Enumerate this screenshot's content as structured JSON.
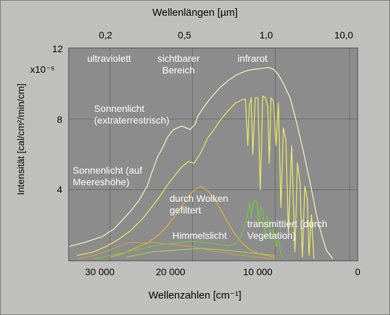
{
  "chart_data": {
    "type": "line",
    "top_axis_title": "Wellenlängen [µm]",
    "top_ticks": [
      "0,2",
      "0,5",
      "1,0",
      "10,0"
    ],
    "xlabel": "Wellenzahlen [cm⁻¹]",
    "x_ticks": [
      "30 000",
      "20 000",
      "10 000",
      "0"
    ],
    "xlim": [
      35000,
      0
    ],
    "ylabel": "Intensität [cal/cm²/min/cm]",
    "y_ticks": [
      "12",
      "8",
      "4"
    ],
    "y_multiplier": "x10⁻⁵",
    "ylim": [
      0,
      12
    ],
    "grid": true,
    "regions": [
      {
        "label": "ultraviolett"
      },
      {
        "label": "sichtbarer Bereich"
      },
      {
        "label": "infrarot"
      }
    ],
    "annotations": [
      "Sonnenlicht (extraterrestrisch)",
      "Sonnenlicht (auf Meereshöhe)",
      "durch Wolken gefiltert",
      "Himmelslicht",
      "transmittiert (durch Vegetation)"
    ],
    "series": [
      {
        "color": "#fafac8",
        "x": [
          35000,
          33000,
          31000,
          29500,
          28500,
          27500,
          26500,
          25500,
          25000,
          24200,
          23700,
          23000,
          22300,
          21300,
          20300,
          19700,
          19300,
          18600,
          17600,
          16600,
          15600,
          14600,
          13600,
          12600,
          11600,
          10800,
          10200,
          9600,
          9000,
          8200,
          7400,
          6600,
          5800,
          5000,
          4400,
          3800,
          3000
        ],
        "y": [
          0.8,
          1.05,
          1.35,
          1.8,
          2.3,
          2.8,
          3.4,
          4.2,
          4.9,
          5.9,
          6.3,
          7.0,
          7.4,
          7.6,
          7.4,
          7.7,
          8.2,
          8.7,
          9.3,
          9.8,
          10.2,
          10.5,
          10.7,
          10.8,
          10.85,
          10.9,
          10.8,
          10.5,
          10.0,
          9.2,
          7.8,
          6.2,
          4.5,
          2.6,
          1.5,
          0.6,
          0.1
        ]
      },
      {
        "color": "#f0f064",
        "x": [
          34000,
          32000,
          30500,
          29000,
          27500,
          26000,
          25000,
          24000,
          23000,
          22000,
          21300,
          20500,
          19800,
          19000,
          18200,
          17400,
          16700,
          16000,
          15400,
          14800,
          14300,
          13900,
          13600,
          13300,
          13100,
          12900,
          12700,
          12400,
          12100,
          11800,
          11500,
          11200,
          10900,
          10700,
          10500,
          10200,
          9900,
          9600,
          9300,
          9000,
          8700,
          8400,
          8000,
          7600,
          7300,
          7000,
          6700,
          6400,
          6100,
          5900,
          5600,
          5300
        ],
        "y": [
          0.3,
          0.5,
          0.8,
          1.2,
          1.7,
          2.4,
          3.0,
          3.6,
          4.3,
          4.9,
          5.3,
          5.6,
          5.5,
          6.1,
          6.9,
          7.4,
          7.9,
          8.3,
          8.6,
          8.9,
          9.0,
          9.1,
          9.1,
          6.5,
          8.8,
          9.2,
          6.0,
          9.2,
          9.2,
          4.0,
          9.3,
          9.2,
          8.7,
          5.5,
          9.2,
          9.0,
          6.5,
          8.9,
          3.0,
          7.5,
          6.8,
          1.5,
          6.5,
          0.5,
          5.5,
          4.5,
          0.2,
          4.2,
          3.5,
          0.3,
          2.6,
          0.1
        ]
      },
      {
        "color": "#e6b43c",
        "x": [
          30000,
          28500,
          27000,
          25500,
          24000,
          23000,
          22000,
          21000,
          20000,
          19000,
          18000,
          17000,
          16000,
          15000,
          14000,
          13000,
          12000,
          11000,
          10000
        ],
        "y": [
          0.2,
          0.4,
          0.7,
          1.0,
          1.5,
          2.0,
          2.6,
          3.3,
          3.9,
          4.2,
          3.9,
          3.2,
          2.4,
          1.6,
          1.0,
          0.6,
          0.4,
          0.3,
          0.2
        ]
      },
      {
        "color": "#c8a050",
        "x": [
          34000,
          32000,
          30000,
          29000,
          28000,
          27000,
          26000,
          25000,
          24000,
          23000,
          22000,
          21000,
          20000,
          19000,
          18000,
          17000,
          16000,
          15000,
          14000,
          13000,
          12000,
          11000,
          10000
        ],
        "y": [
          0.1,
          0.3,
          0.6,
          0.8,
          1.0,
          1.05,
          1.0,
          1.05,
          1.0,
          0.95,
          0.9,
          0.85,
          0.8,
          0.7,
          0.6,
          0.5,
          0.45,
          0.35,
          0.3,
          0.25,
          0.2,
          0.15,
          0.1
        ]
      },
      {
        "color": "#78c83c",
        "x": [
          32000,
          30000,
          28000,
          26000,
          24000,
          22000,
          20000,
          18000,
          16500,
          15500,
          14800,
          14200,
          13800,
          13500,
          13300,
          13100,
          12900,
          12700,
          12500,
          12200,
          12000,
          11800,
          11500,
          11200,
          11000,
          10800,
          10500,
          10200,
          9900,
          9600,
          9300,
          9000
        ],
        "y": [
          0.1,
          0.3,
          0.5,
          0.7,
          0.9,
          1.0,
          1.1,
          1.0,
          0.9,
          0.85,
          1.0,
          1.3,
          1.8,
          2.3,
          2.8,
          3.3,
          2.4,
          3.2,
          3.4,
          3.3,
          2.0,
          3.0,
          2.8,
          1.2,
          2.5,
          2.3,
          1.2,
          1.8,
          0.8,
          1.2,
          0.4,
          0.2
        ]
      },
      {
        "color": "#a0d250",
        "x": [
          28000,
          25000,
          22000,
          19000,
          16000,
          14000,
          12000,
          10000
        ],
        "y": [
          0.2,
          0.5,
          0.6,
          0.7,
          0.6,
          0.5,
          0.4,
          0.3
        ]
      }
    ]
  }
}
